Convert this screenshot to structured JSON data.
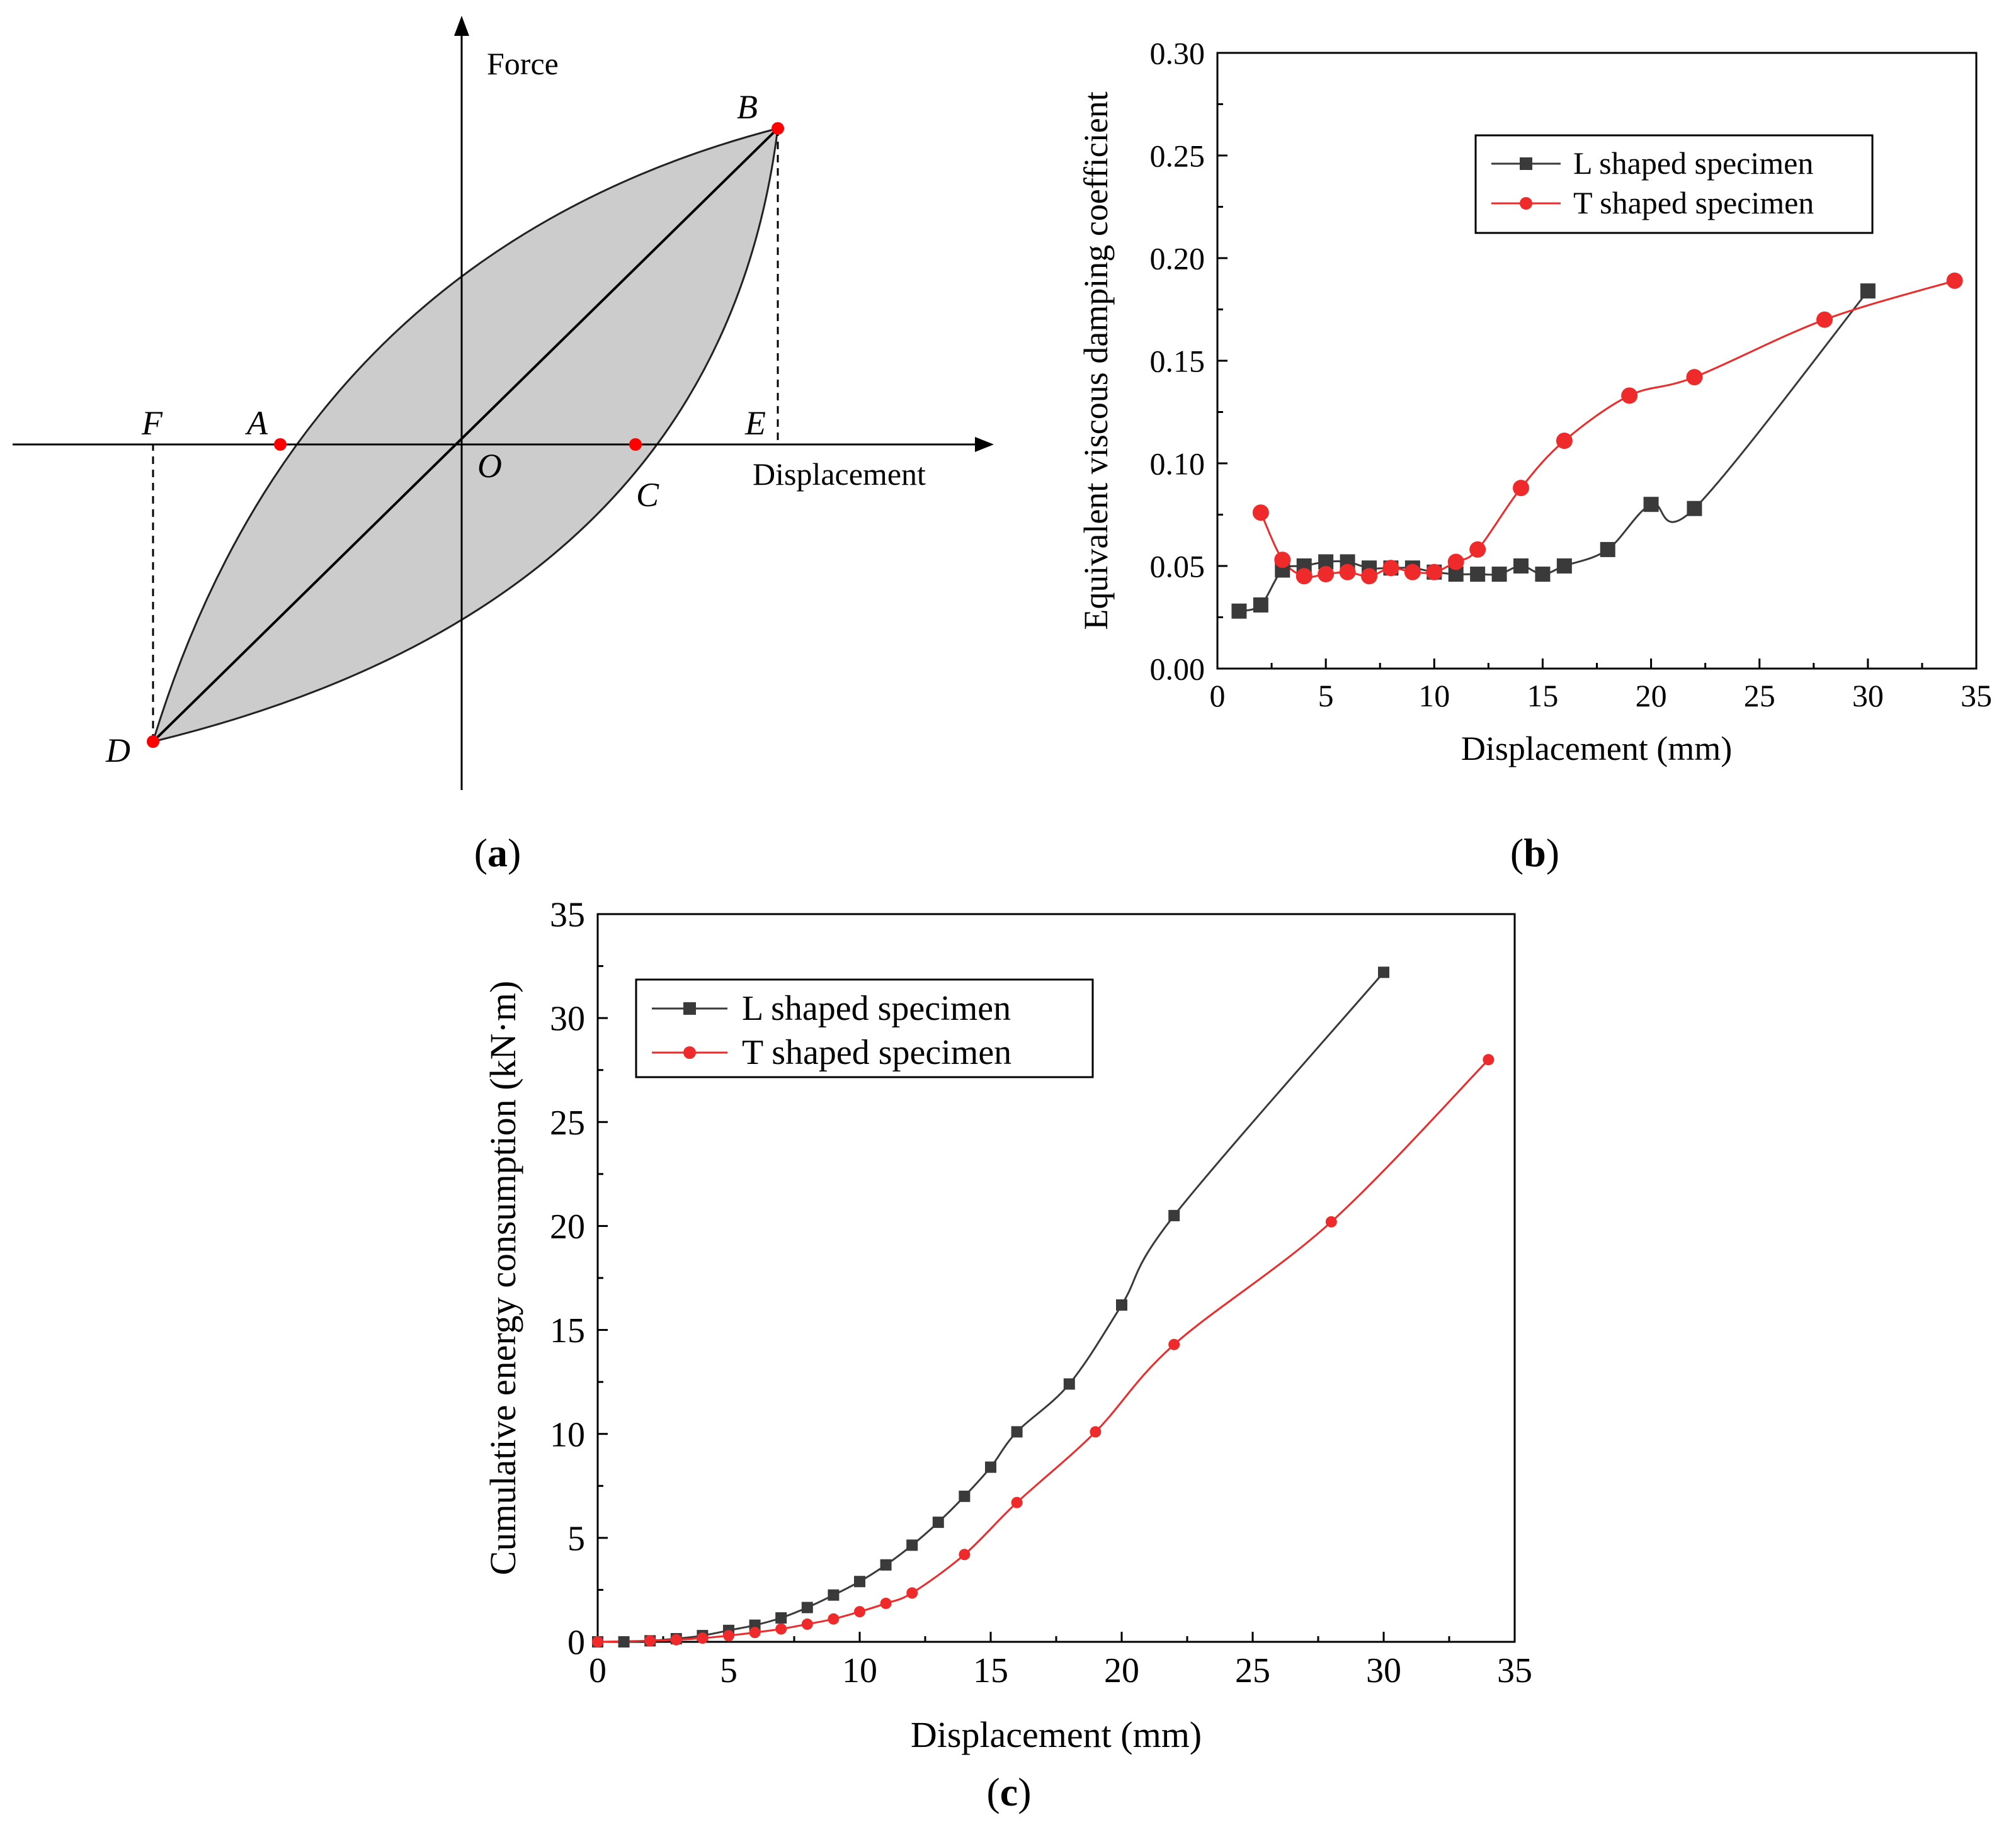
{
  "colors": {
    "L": "#3a3a3a",
    "T": "#ee2a2a",
    "fill": "#cccccc",
    "point": "#ff0000"
  },
  "panel_a": {
    "label_open": "(",
    "label_letter": "a",
    "label_close": ")",
    "axis_x": "Displacement",
    "axis_y": "Force",
    "points": {
      "A": "A",
      "B": "B",
      "C": "C",
      "D": "D",
      "E": "E",
      "F": "F",
      "O": "O"
    }
  },
  "chart_data": [
    {
      "id": "b",
      "type": "line",
      "panel_label": "(b)",
      "label_open": "(",
      "label_letter": "b",
      "label_close": ")",
      "xlabel": "Displacement (mm)",
      "ylabel": "Equivalent viscous damping coefficient",
      "xlim": [
        0,
        35
      ],
      "ylim": [
        0,
        0.3
      ],
      "xticks": [
        "0",
        "5",
        "10",
        "15",
        "20",
        "25",
        "30",
        "35"
      ],
      "yticks": [
        "0.00",
        "0.05",
        "0.10",
        "0.15",
        "0.20",
        "0.25",
        "0.30"
      ],
      "legend_position": "top-right",
      "series": [
        {
          "name": "L shaped specimen",
          "marker": "square",
          "x": [
            1,
            2,
            3,
            4,
            5,
            6,
            7,
            8,
            9,
            10,
            11,
            12,
            13,
            14,
            15,
            16,
            18,
            20,
            22,
            30
          ],
          "y": [
            0.028,
            0.031,
            0.048,
            0.05,
            0.052,
            0.052,
            0.049,
            0.049,
            0.049,
            0.047,
            0.046,
            0.046,
            0.046,
            0.05,
            0.046,
            0.05,
            0.058,
            0.08,
            0.078,
            0.184
          ]
        },
        {
          "name": "T shaped specimen",
          "marker": "circle",
          "x": [
            2,
            3,
            4,
            5,
            6,
            7,
            8,
            9,
            10,
            11,
            12,
            14,
            16,
            19,
            22,
            28,
            34
          ],
          "y": [
            0.076,
            0.053,
            0.045,
            0.046,
            0.047,
            0.045,
            0.049,
            0.047,
            0.047,
            0.052,
            0.058,
            0.088,
            0.111,
            0.133,
            0.142,
            0.17,
            0.189
          ]
        }
      ]
    },
    {
      "id": "c",
      "type": "line",
      "panel_label": "(c)",
      "label_open": "(",
      "label_letter": "c",
      "label_close": ")",
      "xlabel": "Displacement (mm)",
      "ylabel": "Cumulative energy consumption (kN·m)",
      "xlim": [
        0,
        35
      ],
      "ylim": [
        0,
        35
      ],
      "xticks": [
        "0",
        "5",
        "10",
        "15",
        "20",
        "25",
        "30",
        "35"
      ],
      "yticks": [
        "0",
        "5",
        "10",
        "15",
        "20",
        "25",
        "30",
        "35"
      ],
      "legend_position": "top-left",
      "series": [
        {
          "name": "L shaped specimen",
          "marker": "square",
          "x": [
            0,
            1,
            2,
            3,
            4,
            5,
            6,
            7,
            8,
            9,
            10,
            11,
            12,
            13,
            14,
            15,
            16,
            18,
            20,
            22,
            30
          ],
          "y": [
            0,
            0,
            0.05,
            0.15,
            0.3,
            0.55,
            0.8,
            1.15,
            1.65,
            2.25,
            2.9,
            3.7,
            4.65,
            5.75,
            7.0,
            8.4,
            10.1,
            12.4,
            16.2,
            20.5,
            32.2
          ]
        },
        {
          "name": "T shaped specimen",
          "marker": "circle",
          "x": [
            0,
            2,
            3,
            4,
            5,
            6,
            7,
            8,
            9,
            10,
            11,
            12,
            14,
            16,
            19,
            22,
            28,
            34
          ],
          "y": [
            0,
            0.05,
            0.1,
            0.18,
            0.3,
            0.45,
            0.62,
            0.85,
            1.1,
            1.45,
            1.85,
            2.35,
            4.2,
            6.7,
            10.1,
            14.3,
            20.2,
            28.0
          ]
        }
      ]
    }
  ]
}
